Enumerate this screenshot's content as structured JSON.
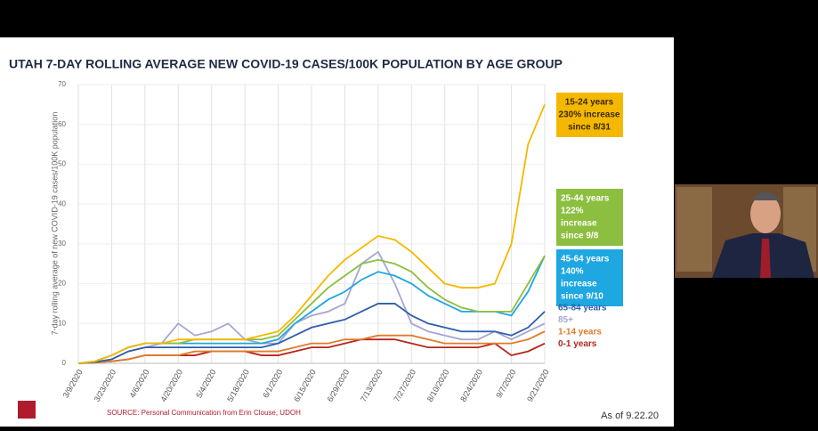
{
  "chart_data": {
    "type": "line",
    "title": "UTAH 7-DAY ROLLING AVERAGE NEW COVID-19 CASES/100K POPULATION BY AGE GROUP",
    "y_label": "7-day rolling average of new COVID-19 cases/100K population",
    "source": "SOURCE: Personal Communication from Erin Clouse, UDOH",
    "as_of": "As of 9.22.20",
    "categories": [
      "3/9/2020",
      null,
      "3/23/2020",
      null,
      "4/6/2020",
      null,
      "4/20/2020",
      null,
      "5/4/2020",
      null,
      "5/18/2020",
      null,
      "6/1/2020",
      null,
      "6/15/2020",
      null,
      "6/29/2020",
      null,
      "7/13/2020",
      null,
      "7/27/2020",
      null,
      "8/10/2020",
      null,
      "8/24/2020",
      null,
      "9/7/2020",
      null,
      "9/21/2020"
    ],
    "ylim": [
      0,
      70
    ],
    "yticks": [
      0,
      10,
      20,
      30,
      40,
      50,
      60,
      70
    ],
    "grid": true,
    "series": [
      {
        "name": "15-24 years",
        "color": "#f5b800",
        "box": true,
        "callout": [
          "230% increase",
          "since 8/31"
        ],
        "values": [
          0,
          0.5,
          2,
          4,
          5,
          5,
          6,
          6,
          6,
          6,
          6,
          7,
          8,
          12,
          17,
          22,
          26,
          29,
          32,
          31,
          28,
          24,
          20,
          19,
          19,
          20,
          30,
          55,
          65
        ]
      },
      {
        "name": "25-44 years",
        "color": "#8cbf3f",
        "box": true,
        "callout": [
          "122%",
          "increase",
          "since 9/8"
        ],
        "values": [
          0,
          0.5,
          2,
          4,
          5,
          5,
          5,
          6,
          6,
          6,
          6,
          6,
          7,
          11,
          15,
          19,
          22,
          25,
          26,
          25,
          23,
          19,
          16,
          14,
          13,
          13,
          13,
          20,
          27
        ]
      },
      {
        "name": "45-64 years",
        "color": "#1ea7e1",
        "box": true,
        "callout": [
          "140%",
          "increase",
          "since 9/10"
        ],
        "values": [
          0,
          0.5,
          2,
          4,
          5,
          5,
          5,
          5,
          5,
          5,
          5,
          5,
          6,
          10,
          13,
          16,
          18,
          21,
          23,
          22,
          20,
          17,
          15,
          13,
          13,
          13,
          12,
          18,
          27
        ]
      },
      {
        "name": "65-84 years",
        "color": "#2e5ea8",
        "values": [
          0,
          0.3,
          1,
          3,
          4,
          4,
          4,
          4,
          4,
          4,
          4,
          4,
          5,
          7,
          9,
          10,
          11,
          13,
          15,
          15,
          12,
          10,
          9,
          8,
          8,
          8,
          7,
          9,
          13
        ]
      },
      {
        "name": "85+",
        "color": "#a5a5d6",
        "values": [
          0,
          0.3,
          1,
          3,
          4,
          5,
          10,
          7,
          8,
          10,
          6,
          5,
          5,
          10,
          12,
          13,
          15,
          25,
          28,
          20,
          10,
          8,
          7,
          6,
          6,
          8,
          6,
          8,
          10
        ]
      },
      {
        "name": "1-14 years",
        "color": "#e07b2a",
        "values": [
          0,
          0.2,
          0.5,
          1,
          2,
          2,
          2,
          3,
          3,
          3,
          3,
          3,
          3,
          4,
          5,
          5,
          6,
          6,
          7,
          7,
          7,
          6,
          5,
          5,
          5,
          5,
          5,
          6,
          8
        ]
      },
      {
        "name": "0-1 years",
        "color": "#b5271a",
        "values": [
          0,
          0.2,
          0.5,
          1,
          2,
          2,
          2,
          2,
          3,
          3,
          3,
          2,
          2,
          3,
          4,
          4,
          5,
          6,
          6,
          6,
          5,
          4,
          4,
          4,
          4,
          5,
          2,
          3,
          5
        ]
      }
    ]
  }
}
